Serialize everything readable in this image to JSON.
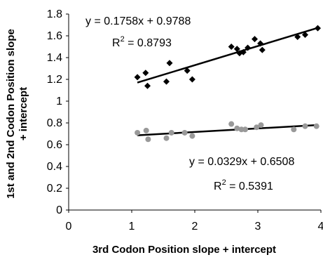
{
  "chart_data": {
    "type": "scatter",
    "xlabel": "3rd Codon Position slope + intercept",
    "ylabel_line1": "1st and 2nd Codon Position slope",
    "ylabel_line2": "+ intercept",
    "xlim": [
      0,
      4
    ],
    "ylim": [
      0,
      1.8
    ],
    "x_ticks": [
      "0",
      "1",
      "2",
      "3",
      "4"
    ],
    "y_ticks": [
      "0",
      "0.2",
      "0.4",
      "0.6",
      "0.8",
      "1",
      "1.2",
      "1.4",
      "1.6",
      "1.8"
    ],
    "grid": false,
    "legend": "none",
    "series": [
      {
        "marker": "diamond",
        "color": "#000000",
        "x": [
          1.09,
          1.22,
          1.25,
          1.55,
          1.6,
          1.88,
          1.96,
          2.58,
          2.67,
          2.71,
          2.77,
          2.84,
          2.95,
          3.04,
          3.07,
          3.63,
          3.75,
          3.95
        ],
        "y": [
          1.22,
          1.26,
          1.14,
          1.18,
          1.35,
          1.28,
          1.2,
          1.5,
          1.48,
          1.44,
          1.45,
          1.49,
          1.57,
          1.53,
          1.47,
          1.59,
          1.61,
          1.67
        ],
        "trendline": {
          "slope": 0.1758,
          "intercept": 0.9788,
          "x_range": [
            1.09,
            3.95
          ]
        },
        "equation": "y = 0.1758x + 0.9788",
        "r2_prefix": "R",
        "r2_exp": "2",
        "r2_value": " = 0.8793"
      },
      {
        "marker": "circle",
        "color": "#999999",
        "x": [
          1.09,
          1.23,
          1.26,
          1.55,
          1.63,
          1.84,
          1.96,
          2.58,
          2.67,
          2.74,
          2.8,
          2.98,
          3.05,
          3.57,
          3.75,
          3.93
        ],
        "y": [
          0.71,
          0.73,
          0.65,
          0.66,
          0.71,
          0.71,
          0.68,
          0.79,
          0.75,
          0.74,
          0.74,
          0.76,
          0.78,
          0.74,
          0.77,
          0.77
        ],
        "trendline": {
          "slope": 0.0329,
          "intercept": 0.6508,
          "x_range": [
            1.09,
            3.95
          ]
        },
        "equation": "y = 0.0329x + 0.6508",
        "r2_prefix": "R",
        "r2_exp": "2",
        "r2_value": " = 0.5391"
      }
    ]
  }
}
